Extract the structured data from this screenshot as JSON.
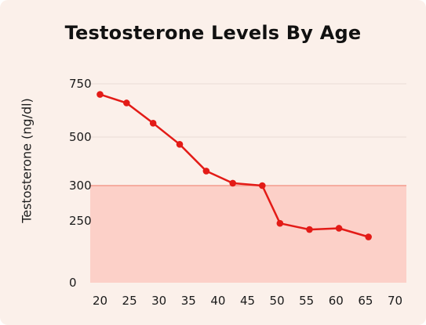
{
  "chart_data": {
    "type": "line",
    "title": "Testosterone Levels By Age",
    "xlabel": "",
    "ylabel": "Testosterone (ng/dl)",
    "x_ticks": [
      20,
      25,
      30,
      35,
      40,
      45,
      50,
      55,
      60,
      65,
      70
    ],
    "y_ticks": [
      0,
      250,
      300,
      500,
      750
    ],
    "series": [
      {
        "x": [
          20,
          24.5,
          29,
          33.5,
          38,
          42.5,
          47.5,
          50.5,
          55.5,
          60.5,
          65.5
        ],
        "y": [
          700,
          660,
          565,
          470,
          360,
          310,
          300,
          240,
          215,
          220,
          185
        ]
      }
    ],
    "shaded_region": {
      "y_from": 0,
      "y_to": 300
    },
    "grid": "horizontal",
    "legend": "none",
    "colors": {
      "background": "#fbf0ea",
      "line": "#e31b17",
      "shaded_fill": "#fcd0c8",
      "shaded_edge": "#f39a8c",
      "gridline": "#e9ddd6"
    }
  }
}
